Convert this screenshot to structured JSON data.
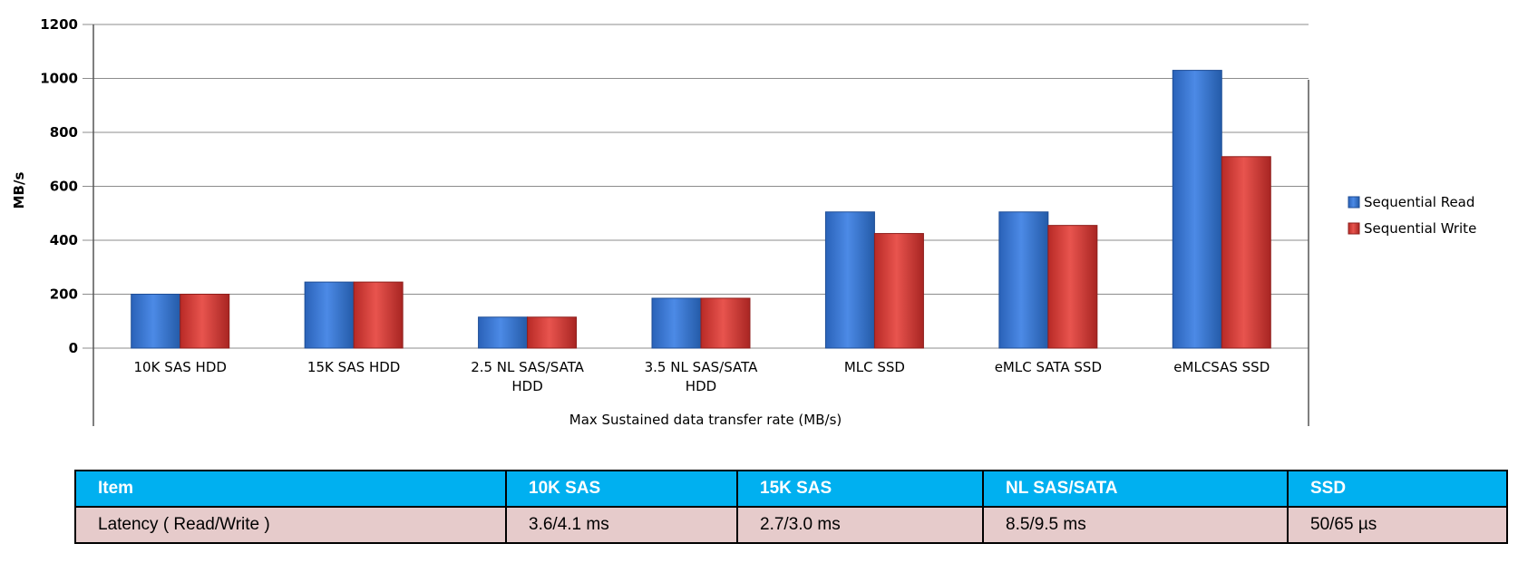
{
  "chart_data": {
    "type": "bar",
    "categories": [
      [
        "10K SAS HDD"
      ],
      [
        "15K SAS HDD"
      ],
      [
        "2.5 NL SAS/SATA",
        "HDD"
      ],
      [
        "3.5 NL SAS/SATA",
        "HDD"
      ],
      [
        "MLC SSD"
      ],
      [
        "eMLC SATA SSD"
      ],
      [
        "eMLCSAS  SSD"
      ]
    ],
    "series": [
      {
        "name": "Sequential Read",
        "values": [
          200,
          245,
          115,
          185,
          505,
          505,
          1030
        ],
        "color": "#3b78d8"
      },
      {
        "name": "Sequential Write",
        "values": [
          200,
          245,
          115,
          185,
          425,
          455,
          710
        ],
        "color": "#d93a35"
      }
    ],
    "xlabel": "Max Sustained data transfer rate (MB/s)",
    "ylabel": "MB/s",
    "ylim": [
      0,
      1200
    ],
    "yticks": [
      "0",
      "200",
      "400",
      "600",
      "800",
      "1000",
      "1200"
    ],
    "grid": true,
    "legend_position": "right"
  },
  "table": {
    "headers": [
      "Item",
      "10K SAS",
      "15K SAS",
      "NL SAS/SATA",
      "SSD"
    ],
    "rows": [
      [
        "Latency ( Read/Write )",
        "3.6/4.1 ms",
        "2.7/3.0 ms",
        "8.5/9.5 ms",
        "50/65 µs"
      ]
    ]
  }
}
